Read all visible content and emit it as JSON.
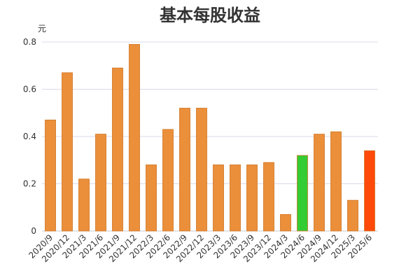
{
  "chart_data": {
    "type": "bar",
    "title": "基本每股收益",
    "ylabel": "元",
    "xlabel": "",
    "ylim": [
      0,
      0.8
    ],
    "yticks": [
      0,
      0.2,
      0.4,
      0.6,
      0.8
    ],
    "ytick_labels": [
      "0",
      "0.2",
      "0.4",
      "0.6",
      "0.8"
    ],
    "grid": true,
    "categories": [
      "2020/9",
      "2020/12",
      "2021/3",
      "2021/6",
      "2021/9",
      "2021/12",
      "2022/3",
      "2022/6",
      "2022/9",
      "2022/12",
      "2023/3",
      "2023/6",
      "2023/9",
      "2023/12",
      "2024/3",
      "2024/6",
      "2024/9",
      "2024/12",
      "2025/3",
      "2025/6"
    ],
    "values": [
      0.47,
      0.67,
      0.22,
      0.41,
      0.69,
      0.79,
      0.28,
      0.43,
      0.52,
      0.52,
      0.28,
      0.28,
      0.28,
      0.29,
      0.07,
      0.32,
      0.41,
      0.42,
      0.13,
      0.34
    ],
    "colors": [
      "#eb8f3b",
      "#eb8f3b",
      "#eb8f3b",
      "#eb8f3b",
      "#eb8f3b",
      "#eb8f3b",
      "#eb8f3b",
      "#eb8f3b",
      "#eb8f3b",
      "#eb8f3b",
      "#eb8f3b",
      "#eb8f3b",
      "#eb8f3b",
      "#eb8f3b",
      "#eb8f3b",
      "#33cc33",
      "#eb8f3b",
      "#eb8f3b",
      "#eb8f3b",
      "#ff4a0a"
    ],
    "bar_stroke": "#d07420",
    "grid_color": "#d9d9e8"
  }
}
